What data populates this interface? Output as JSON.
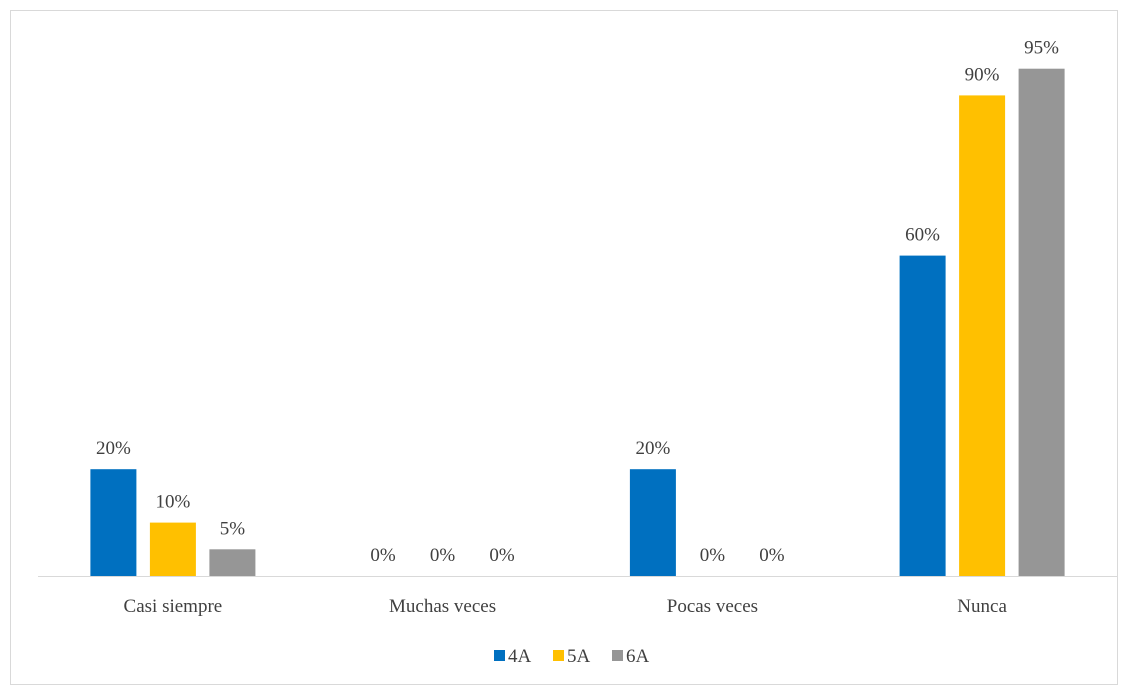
{
  "chart_data": {
    "type": "bar",
    "categories": [
      "Casi siempre",
      "Muchas veces",
      "Pocas veces",
      "Nunca"
    ],
    "series": [
      {
        "name": "4A",
        "color": "#0070C0",
        "values": [
          20,
          0,
          20,
          60
        ],
        "labels": [
          "20%",
          "0%",
          "20%",
          "60%"
        ]
      },
      {
        "name": "5A",
        "color": "#FFC000",
        "values": [
          10,
          0,
          0,
          90
        ],
        "labels": [
          "10%",
          "0%",
          "0%",
          "90%"
        ]
      },
      {
        "name": "6A",
        "color": "#969696",
        "values": [
          5,
          0,
          0,
          95
        ],
        "labels": [
          "5%",
          "0%",
          "0%",
          "95%"
        ]
      }
    ],
    "ylim": [
      0,
      100
    ],
    "unit": "%",
    "grid": false,
    "legend": "bottom",
    "axis_color": "#d9d9d9"
  }
}
